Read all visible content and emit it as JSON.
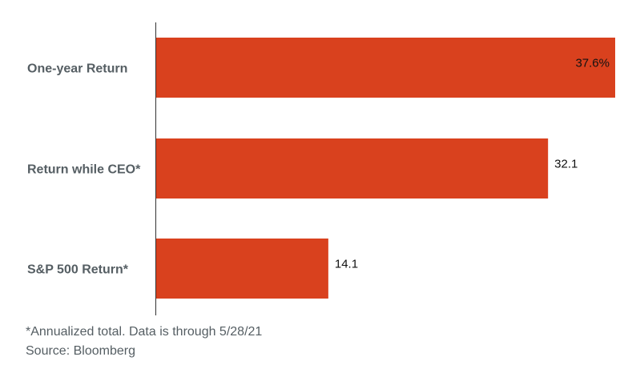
{
  "chart_data": {
    "type": "bar",
    "orientation": "horizontal",
    "categories": [
      "One-year Return",
      "Return while CEO*",
      "S&P 500 Return*"
    ],
    "values": [
      37.6,
      32.1,
      14.1
    ],
    "value_labels": [
      "37.6%",
      "32.1",
      "14.1"
    ],
    "bar_color": "#d9411e",
    "xlim": [
      0,
      37.6
    ],
    "grid": false
  },
  "footnotes": {
    "note": "*Annualized total. Data is through 5/28/21",
    "source": "Source: Bloomberg"
  }
}
